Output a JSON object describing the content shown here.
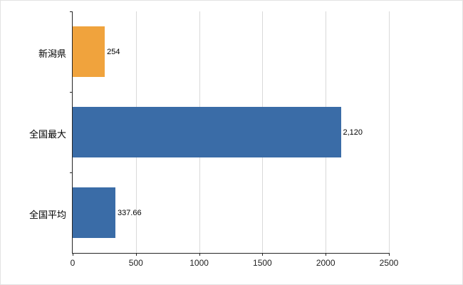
{
  "chart": {
    "title": ""
  },
  "chart_data": {
    "type": "bar",
    "orientation": "horizontal",
    "categories": [
      "新潟県",
      "全国最大",
      "全国平均"
    ],
    "series": [
      {
        "name": "値",
        "values": [
          254,
          2120,
          337.66
        ]
      }
    ],
    "value_labels": [
      "254",
      "2,120",
      "337.66"
    ],
    "bar_colors": [
      "#f0a33d",
      "#3a6ca7",
      "#3a6ca7"
    ],
    "xlabel": "",
    "ylabel": "",
    "xlim": [
      0,
      2500
    ],
    "x_ticks": [
      0,
      500,
      1000,
      1500,
      2000,
      2500
    ],
    "x_tick_labels": [
      "0",
      "500",
      "1000",
      "1500",
      "2000",
      "2500"
    ],
    "grid": "vertical",
    "legend": "none"
  },
  "colors": {
    "background": "#ffffff",
    "gridline": "#d9d9d9",
    "axis": "#262626",
    "text": "#000000",
    "bar_orange": "#f0a33d",
    "bar_blue": "#3a6ca7"
  }
}
